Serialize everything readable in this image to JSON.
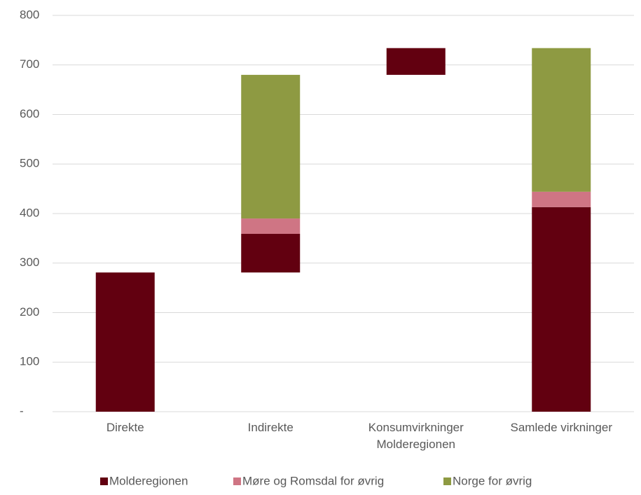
{
  "chart_data": {
    "type": "waterfall",
    "categories": [
      "Direkte",
      "Indirekte",
      "Konsumvirkninger\nMolderegionen",
      "Samlede virkninger"
    ],
    "series": [
      {
        "name": "Molderegionen",
        "color": "#620010",
        "values": [
          281,
          78,
          54,
          413
        ]
      },
      {
        "name": "Møre og Romsdal for øvrig",
        "color": "#cf7584",
        "values": [
          0,
          31,
          0,
          31
        ]
      },
      {
        "name": "Norge for øvrig",
        "color": "#8e9a42",
        "values": [
          0,
          290,
          0,
          290
        ]
      }
    ],
    "ylim": [
      0,
      800
    ],
    "yticks": [
      {
        "value": 0,
        "label": "-"
      },
      100,
      200,
      300,
      400,
      500,
      600,
      700,
      800
    ],
    "grid": true,
    "legend": "bottom"
  }
}
